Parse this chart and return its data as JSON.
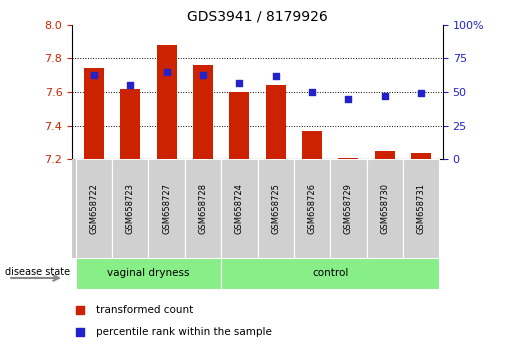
{
  "title": "GDS3941 / 8179926",
  "samples": [
    "GSM658722",
    "GSM658723",
    "GSM658727",
    "GSM658728",
    "GSM658724",
    "GSM658725",
    "GSM658726",
    "GSM658729",
    "GSM658730",
    "GSM658731"
  ],
  "transformed_counts": [
    7.74,
    7.62,
    7.88,
    7.76,
    7.6,
    7.64,
    7.37,
    7.21,
    7.25,
    7.24
  ],
  "percentile_ranks": [
    63,
    55,
    65,
    63,
    57,
    62,
    50,
    45,
    47,
    49
  ],
  "groups": [
    "vaginal dryness",
    "vaginal dryness",
    "vaginal dryness",
    "vaginal dryness",
    "control",
    "control",
    "control",
    "control",
    "control",
    "control"
  ],
  "bar_color": "#CC2200",
  "dot_color": "#2222CC",
  "ylim_left": [
    7.2,
    8.0
  ],
  "ylim_right": [
    0,
    100
  ],
  "yticks_left": [
    7.2,
    7.4,
    7.6,
    7.8,
    8.0
  ],
  "yticks_right": [
    0,
    25,
    50,
    75,
    100
  ],
  "ytick_right_labels": [
    "0",
    "25",
    "50",
    "75",
    "100%"
  ],
  "gridlines": [
    7.4,
    7.6,
    7.8
  ],
  "group_green": "#88EE88",
  "tick_bg": "#cccccc",
  "disease_state_label": "disease state",
  "legend_bar_label": "transformed count",
  "legend_dot_label": "percentile rank within the sample",
  "vd_group_indices": [
    0,
    3
  ],
  "ctrl_group_indices": [
    4,
    9
  ]
}
